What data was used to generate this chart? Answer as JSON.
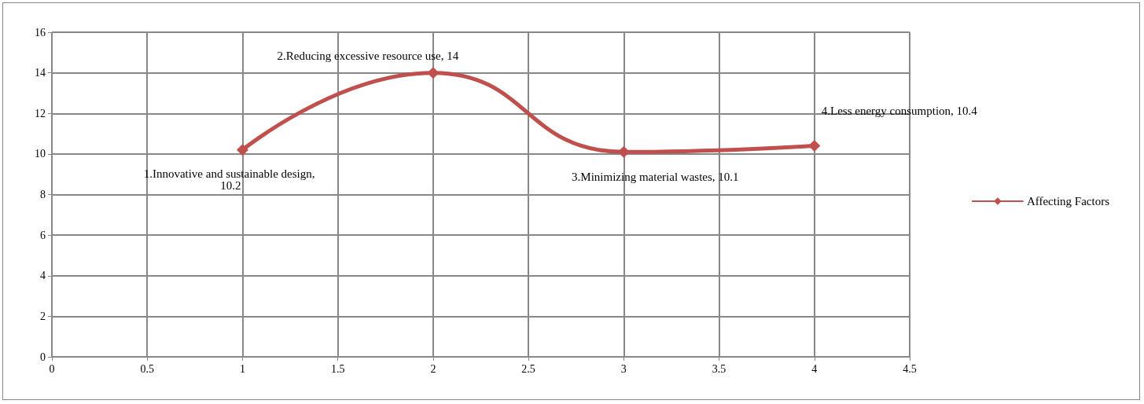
{
  "chart_data": {
    "type": "line",
    "x": [
      1,
      2,
      3,
      4
    ],
    "series": [
      {
        "name": "Affecting Factors",
        "color": "#c0504d",
        "values": [
          10.2,
          14,
          10.1,
          10.4
        ],
        "value_labels": [
          "1.Innovative and sustainable design, 10.2",
          "2.Reducing excessive resource use, 14",
          "3.Minimizing material wastes, 10.1",
          "4.Less energy consumption, 10.4"
        ]
      }
    ],
    "xlim": [
      0,
      4.5
    ],
    "xticks": [
      0,
      0.5,
      1,
      1.5,
      2,
      2.5,
      3,
      3.5,
      4,
      4.5
    ],
    "ylim": [
      0,
      16
    ],
    "yticks": [
      0,
      2,
      4,
      6,
      8,
      10,
      12,
      14,
      16
    ],
    "grid": true,
    "legend": "right",
    "marker": "diamond",
    "line_style": "solid"
  }
}
